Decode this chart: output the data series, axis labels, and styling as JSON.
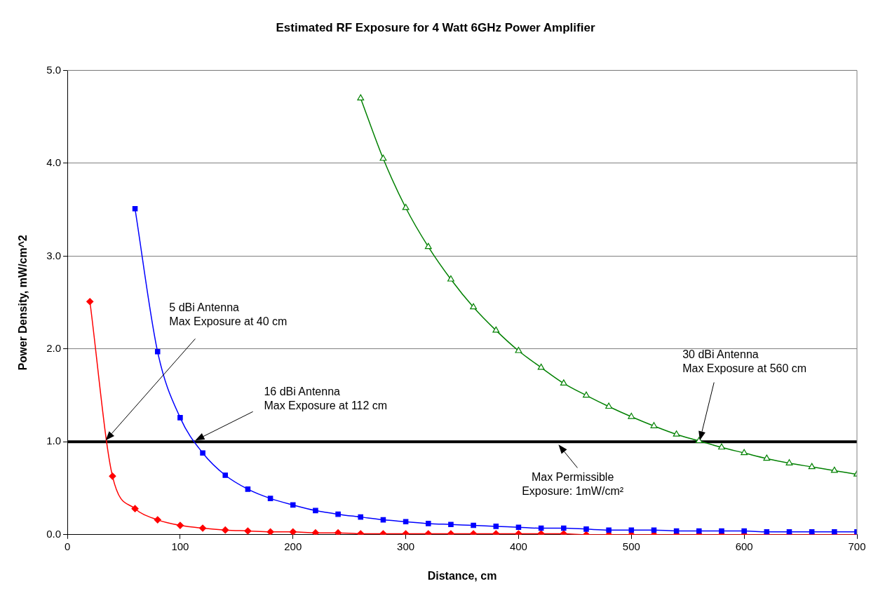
{
  "chart_data": {
    "type": "line",
    "title": "Estimated RF Exposure for 4 Watt 6GHz Power Amplifier",
    "xlabel": "Distance, cm",
    "ylabel": "Power Density, mW/cm^2",
    "xlim": [
      0,
      700
    ],
    "xticks": [
      0,
      100,
      200,
      300,
      400,
      500,
      600,
      700
    ],
    "ylim": [
      0,
      5
    ],
    "yticks": [
      {
        "value": 0,
        "label": "0.0"
      },
      {
        "value": 1,
        "label": "1.0"
      },
      {
        "value": 2,
        "label": "2.0"
      },
      {
        "value": 3,
        "label": "3.0"
      },
      {
        "value": 4,
        "label": "4.0"
      },
      {
        "value": 5,
        "label": "5.0"
      }
    ],
    "grid": "y",
    "legend": false,
    "line_style": "solid",
    "series": [
      {
        "color": "#ff0000",
        "marker": "diamond",
        "x": [
          20,
          40,
          60,
          80,
          100,
          120,
          140,
          160,
          180,
          200,
          220,
          240,
          260,
          280,
          300,
          320,
          340,
          360,
          380,
          400,
          420,
          440,
          460,
          480,
          500,
          520,
          540,
          560,
          580,
          600,
          620,
          640,
          660,
          680,
          700
        ],
        "values": [
          2.51,
          0.63,
          0.28,
          0.16,
          0.1,
          0.07,
          0.05,
          0.04,
          0.03,
          0.03,
          0.02,
          0.02,
          0.01,
          0.01,
          0.01,
          0.01,
          0.01,
          0.01,
          0.01,
          0.01,
          0.01,
          0.01,
          0.0,
          0.0,
          0.0,
          0.0,
          0.0,
          0.0,
          0.0,
          0.0,
          0.0,
          0.0,
          0.0,
          0.0,
          0.0
        ]
      },
      {
        "color": "#0000ff",
        "marker": "square",
        "x": [
          60,
          80,
          100,
          120,
          140,
          160,
          180,
          200,
          220,
          240,
          260,
          280,
          300,
          320,
          340,
          360,
          380,
          400,
          420,
          440,
          460,
          480,
          500,
          520,
          540,
          560,
          580,
          600,
          620,
          640,
          660,
          680,
          700
        ],
        "values": [
          3.51,
          1.97,
          1.26,
          0.88,
          0.64,
          0.49,
          0.39,
          0.32,
          0.26,
          0.22,
          0.19,
          0.16,
          0.14,
          0.12,
          0.11,
          0.1,
          0.09,
          0.08,
          0.07,
          0.07,
          0.06,
          0.05,
          0.05,
          0.05,
          0.04,
          0.04,
          0.04,
          0.04,
          0.03,
          0.03,
          0.03,
          0.03,
          0.03
        ]
      },
      {
        "color": "#008000",
        "marker": "triangle",
        "x": [
          260,
          280,
          300,
          320,
          340,
          360,
          380,
          400,
          420,
          440,
          460,
          480,
          500,
          520,
          540,
          560,
          580,
          600,
          620,
          640,
          660,
          680,
          700
        ],
        "values": [
          4.7,
          4.05,
          3.52,
          3.1,
          2.75,
          2.45,
          2.2,
          1.98,
          1.8,
          1.63,
          1.5,
          1.38,
          1.27,
          1.17,
          1.08,
          1.01,
          0.94,
          0.88,
          0.82,
          0.77,
          0.73,
          0.69,
          0.65
        ]
      }
    ],
    "ref_lines": [
      {
        "axis": "y",
        "value": 1,
        "color": "#000000"
      }
    ],
    "annotations": [
      "5 dBi Antenna\nMax Exposure at 40 cm",
      "16 dBi Antenna\nMax Exposure at 112 cm",
      "30 dBi Antenna\nMax Exposure at 560 cm",
      "Max Permissible\nExposure: 1mW/cm²"
    ]
  }
}
